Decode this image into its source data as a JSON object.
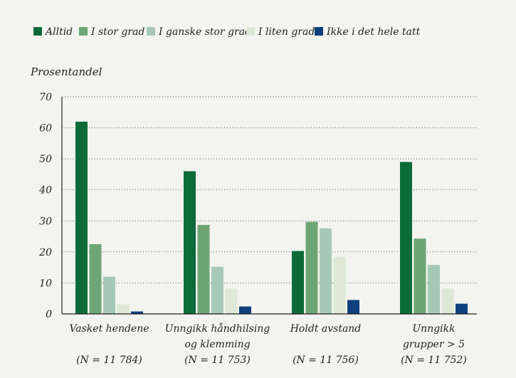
{
  "chart_data": {
    "type": "bar",
    "ylabel": "Prosentandel",
    "ylim": [
      0,
      70
    ],
    "yticks": [
      0,
      10,
      20,
      30,
      40,
      50,
      60,
      70
    ],
    "grid": "horizontal dotted",
    "legend_position": "top",
    "categories": [
      {
        "lines": [
          "Vasket hendene",
          "",
          "(N = 11 784)"
        ]
      },
      {
        "lines": [
          "Unngikk håndhilsing",
          "og klemming",
          "(N = 11 753)"
        ]
      },
      {
        "lines": [
          "Holdt avstand",
          "",
          "(N = 11 756)"
        ]
      },
      {
        "lines": [
          "Unngikk",
          "grupper > 5",
          "(N = 11 752)"
        ]
      }
    ],
    "series": [
      {
        "name": "Alltid",
        "color": "#0d6b3a",
        "values": [
          62,
          46,
          20.3,
          49
        ]
      },
      {
        "name": "I stor grad",
        "color": "#6ea574",
        "values": [
          22.5,
          28.7,
          29.7,
          24.3
        ]
      },
      {
        "name": "I ganske stor grad",
        "color": "#a6c9b5",
        "values": [
          12,
          15.2,
          27.6,
          15.8
        ]
      },
      {
        "name": "I liten grad",
        "color": "#dde9d6",
        "values": [
          3.1,
          8.2,
          18.3,
          8.2
        ]
      },
      {
        "name": "Ikke i det hele tatt",
        "color": "#0e3f7e",
        "values": [
          0.8,
          2.4,
          4.5,
          3.3
        ]
      }
    ]
  }
}
